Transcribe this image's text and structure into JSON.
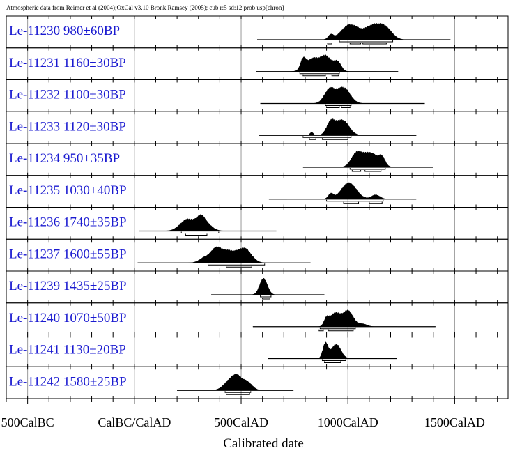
{
  "chart_data": {
    "type": "multiple-plot",
    "header": "Atmospheric data from Reimer et al (2004);OxCal v3.10 Bronk Ramsey (2005); cub r:5 sd:12 prob usp[chron]",
    "xlabel": "Calibrated date",
    "x_unit": "Cal AD (negative = Cal BC)",
    "xlim": [
      -600,
      1750
    ],
    "x_ticks": [
      {
        "value": -500,
        "label": "500CalBC"
      },
      {
        "value": 0,
        "label": "CalBC/CalAD"
      },
      {
        "value": 500,
        "label": "500CalAD"
      },
      {
        "value": 1000,
        "label": "1000CalAD"
      },
      {
        "value": 1500,
        "label": "1500CalAD"
      }
    ],
    "minor_tick_step": 100,
    "grid": true,
    "series": [
      {
        "name": "Le-11230",
        "date": "980±60BP",
        "range": [
          575,
          1480
        ],
        "peaks": [
          [
            1010,
            40,
            0.85
          ],
          [
            1120,
            40,
            0.8
          ],
          [
            1180,
            30,
            0.5
          ],
          [
            920,
            12,
            0.25
          ]
        ],
        "brackets": [
          [
            905,
            925,
            2
          ],
          [
            960,
            1210,
            1
          ],
          [
            1010,
            1060,
            2
          ],
          [
            1070,
            1180,
            2
          ]
        ]
      },
      {
        "name": "Le-11231",
        "date": "1160±30BP",
        "range": [
          570,
          1235
        ],
        "peaks": [
          [
            790,
            12,
            0.55
          ],
          [
            840,
            35,
            0.8
          ],
          [
            900,
            22,
            0.75
          ],
          [
            950,
            18,
            0.6
          ]
        ],
        "brackets": [
          [
            775,
            960,
            1
          ],
          [
            790,
            895,
            2
          ],
          [
            925,
            955,
            2
          ]
        ]
      },
      {
        "name": "Le-11232",
        "date": "1100±30BP",
        "range": [
          590,
          1360
        ],
        "peaks": [
          [
            915,
            25,
            0.85
          ],
          [
            980,
            30,
            0.95
          ]
        ],
        "brackets": [
          [
            895,
            1015,
            1
          ],
          [
            900,
            960,
            2
          ],
          [
            970,
            1010,
            2
          ]
        ]
      },
      {
        "name": "Le-11233",
        "date": "1120±30BP",
        "range": [
          585,
          1320
        ],
        "peaks": [
          [
            920,
            20,
            0.8
          ],
          [
            975,
            30,
            0.95
          ],
          [
            830,
            8,
            0.2
          ]
        ],
        "brackets": [
          [
            790,
            1015,
            1
          ],
          [
            880,
            1000,
            2
          ],
          [
            820,
            850,
            2
          ]
        ]
      },
      {
        "name": "Le-11234",
        "date": "950±35BP",
        "range": [
          790,
          1400
        ],
        "peaks": [
          [
            1040,
            25,
            0.85
          ],
          [
            1105,
            35,
            0.95
          ],
          [
            1160,
            15,
            0.5
          ]
        ],
        "brackets": [
          [
            1010,
            1175,
            1
          ],
          [
            1020,
            1060,
            2
          ],
          [
            1080,
            1155,
            2
          ]
        ]
      },
      {
        "name": "Le-11235",
        "date": "1030±40BP",
        "range": [
          630,
          1320
        ],
        "peaks": [
          [
            920,
            12,
            0.3
          ],
          [
            1005,
            35,
            0.95
          ],
          [
            1130,
            20,
            0.25
          ]
        ],
        "brackets": [
          [
            900,
            1165,
            1
          ],
          [
            980,
            1050,
            2
          ],
          [
            1100,
            1160,
            2
          ]
        ]
      },
      {
        "name": "Le-11236",
        "date": "1740±35BP",
        "range": [
          20,
          665
        ],
        "peaks": [
          [
            250,
            35,
            0.85
          ],
          [
            330,
            30,
            0.6
          ],
          [
            310,
            18,
            0.5
          ]
        ],
        "brackets": [
          [
            220,
            395,
            1
          ],
          [
            240,
            340,
            2
          ]
        ]
      },
      {
        "name": "Le-11237",
        "date": "1600±55BP",
        "range": [
          15,
          825
        ],
        "peaks": [
          [
            330,
            25,
            0.3
          ],
          [
            430,
            50,
            0.85
          ],
          [
            520,
            30,
            0.8
          ],
          [
            380,
            20,
            0.5
          ]
        ],
        "brackets": [
          [
            345,
            610,
            1
          ],
          [
            430,
            550,
            2
          ]
        ]
      },
      {
        "name": "Le-11239",
        "date": "1435±25BP",
        "range": [
          360,
          890
        ],
        "peaks": [
          [
            605,
            18,
            0.95
          ]
        ],
        "brackets": [
          [
            590,
            640,
            1
          ],
          [
            600,
            635,
            2
          ]
        ]
      },
      {
        "name": "Le-11240",
        "date": "1070±50BP",
        "range": [
          555,
          1410
        ],
        "peaks": [
          [
            900,
            12,
            0.45
          ],
          [
            940,
            22,
            0.75
          ],
          [
            1000,
            25,
            0.9
          ],
          [
            1070,
            20,
            0.15
          ]
        ],
        "brackets": [
          [
            870,
            1035,
            1
          ],
          [
            910,
            1025,
            2
          ],
          [
            865,
            885,
            2
          ]
        ]
      },
      {
        "name": "Le-11241",
        "date": "1130±20BP",
        "range": [
          625,
          1230
        ],
        "peaks": [
          [
            895,
            12,
            0.9
          ],
          [
            945,
            22,
            0.85
          ]
        ],
        "brackets": [
          [
            880,
            990,
            1
          ],
          [
            890,
            965,
            2
          ]
        ]
      },
      {
        "name": "Le-11242",
        "date": "1580±25BP",
        "range": [
          200,
          745
        ],
        "peaks": [
          [
            450,
            30,
            0.85
          ],
          [
            525,
            25,
            0.75
          ],
          [
            480,
            20,
            0.7
          ]
        ],
        "brackets": [
          [
            425,
            545,
            1
          ],
          [
            430,
            540,
            2
          ]
        ]
      }
    ]
  }
}
